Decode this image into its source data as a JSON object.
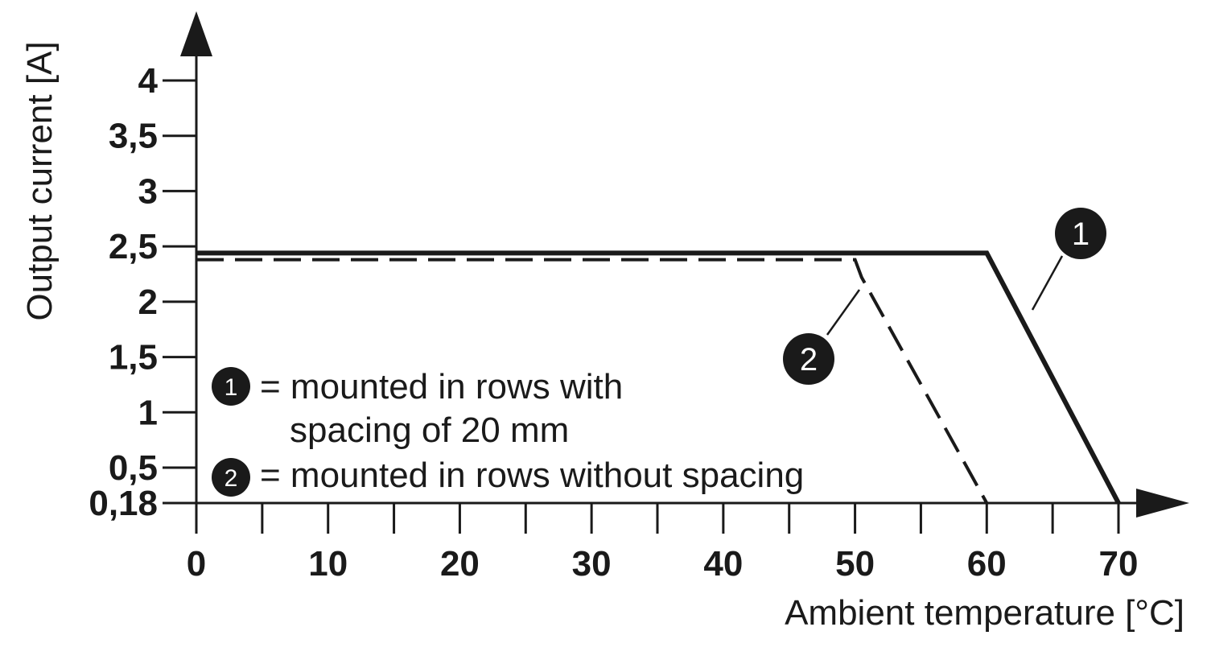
{
  "chart_data": {
    "type": "line",
    "xlabel": "Ambient temperature [°C]",
    "ylabel": "Output current [A]",
    "xlim": [
      0,
      70
    ],
    "ylim": [
      0.18,
      4
    ],
    "x_ticks": [
      0,
      10,
      20,
      30,
      40,
      50,
      60,
      70
    ],
    "x_minor_ticks": [
      5,
      15,
      25,
      35,
      45,
      55,
      65
    ],
    "x_tick_labels": [
      "0",
      "10",
      "20",
      "30",
      "40",
      "50",
      "60",
      "70"
    ],
    "y_ticks": [
      0.18,
      0.5,
      1,
      1.5,
      2,
      2.5,
      3,
      3.5,
      4
    ],
    "y_tick_labels": [
      "0,18",
      "0,5",
      "1",
      "1,5",
      "2",
      "2,5",
      "3",
      "3,5",
      "4"
    ],
    "grid": false,
    "series": [
      {
        "name": "1",
        "style": "solid",
        "color": "#1a1a1a",
        "x": [
          0,
          60,
          70
        ],
        "y": [
          2.44,
          2.44,
          0.18
        ]
      },
      {
        "name": "2",
        "style": "dashed",
        "color": "#1a1a1a",
        "x": [
          0,
          50,
          50.5,
          60
        ],
        "y": [
          2.38,
          2.38,
          2.22,
          0.18
        ]
      }
    ],
    "legend": [
      {
        "marker": "1",
        "lines": [
          "= mounted in rows with",
          "spacing of 20 mm"
        ]
      },
      {
        "marker": "2",
        "lines": [
          "= mounted in rows without spacing"
        ]
      }
    ],
    "legend_position": "bottom-left"
  }
}
